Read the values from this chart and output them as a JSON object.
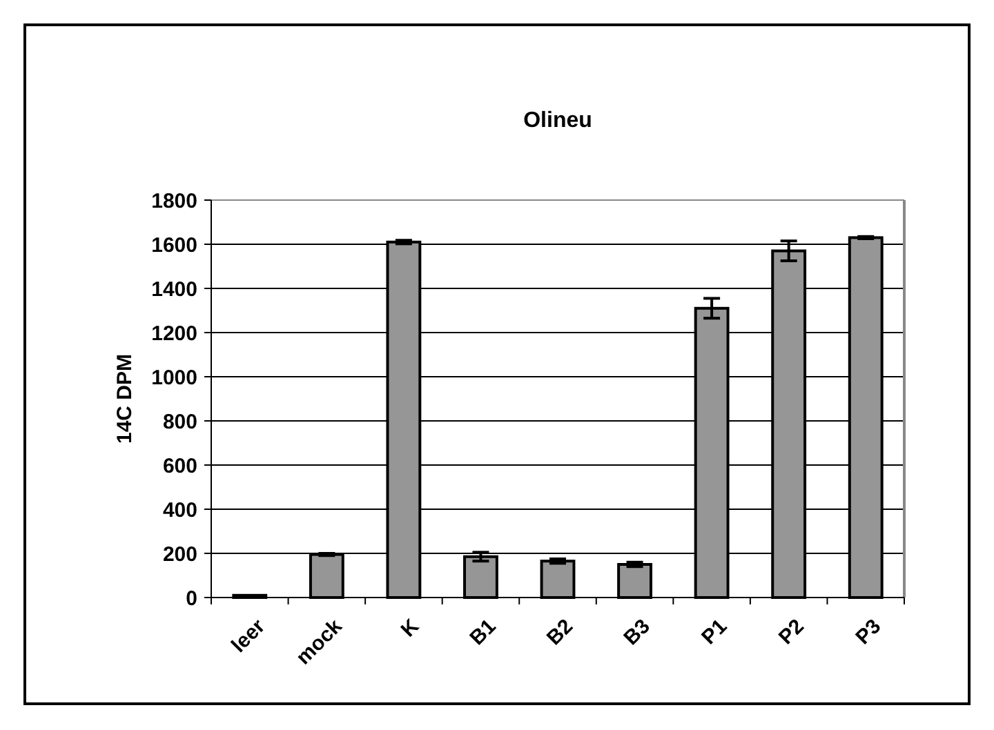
{
  "chart_data": {
    "type": "bar",
    "title": "Olineu",
    "ylabel": "14C DPM",
    "categories": [
      "leer",
      "mock",
      "K",
      "B1",
      "B2",
      "B3",
      "P1",
      "P2",
      "P3"
    ],
    "values": [
      10,
      195,
      1610,
      185,
      165,
      150,
      1310,
      1570,
      1630
    ],
    "errors": [
      null,
      5,
      8,
      20,
      10,
      10,
      45,
      45,
      5
    ],
    "color": "#969696",
    "ylim": [
      0,
      1800
    ],
    "yticks": [
      0,
      200,
      400,
      600,
      800,
      1000,
      1200,
      1400,
      1600,
      1800
    ],
    "grid": "y"
  }
}
